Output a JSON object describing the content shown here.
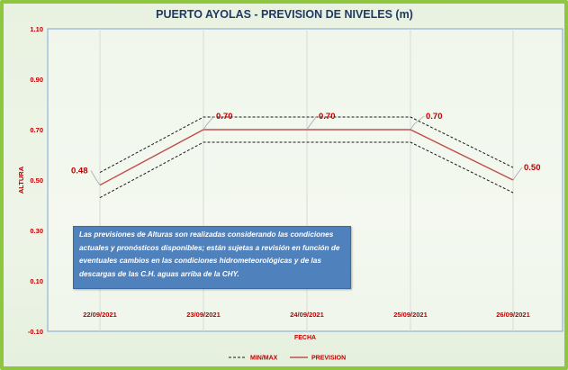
{
  "chart_data": {
    "type": "line",
    "title": "PUERTO AYOLAS - PREVISION DE NIVELES (m)",
    "xlabel": "FECHA",
    "ylabel": "ALTURA",
    "categories": [
      "22/09/2021",
      "23/09/2021",
      "24/09/2021",
      "25/09/2021",
      "26/09/2021"
    ],
    "ylim": [
      -0.1,
      1.1
    ],
    "yticks": [
      "1.10",
      "0.90",
      "0.70",
      "0.50",
      "0.30",
      "0.10",
      "-0.10"
    ],
    "ytick_values": [
      1.1,
      0.9,
      0.7,
      0.5,
      0.3,
      0.1,
      -0.1
    ],
    "grid": "vertical",
    "legend_position": "bottom",
    "series": [
      {
        "name": "MIN/MAX",
        "style": "dashed",
        "color": "#1a1a1a",
        "values": [
          0.53,
          0.75,
          0.75,
          0.75,
          0.55
        ]
      },
      {
        "name": "MIN/MAX",
        "style": "dashed",
        "color": "#1a1a1a",
        "values": [
          0.43,
          0.65,
          0.65,
          0.65,
          0.45
        ],
        "legend": false
      },
      {
        "name": "PREVISION",
        "style": "solid",
        "color": "#c0504d",
        "values": [
          0.48,
          0.7,
          0.7,
          0.7,
          0.5
        ]
      }
    ],
    "data_labels": [
      "0.48",
      "0.70",
      "0.70",
      "0.70",
      "0.50"
    ]
  },
  "note": "Las previsiones de Alturas son realizadas considerando las condiciones actuales y pronósticos disponibles;  están sujetas a revisión en función de eventuales cambios en las condiciones hidrometeorológicas y de las descargas de las C.H. aguas arriba de la CHY.",
  "colors": {
    "accent": "#c00000",
    "title": "#1f3864",
    "note_bg": "#4f81bd",
    "border": "#8fc640"
  }
}
